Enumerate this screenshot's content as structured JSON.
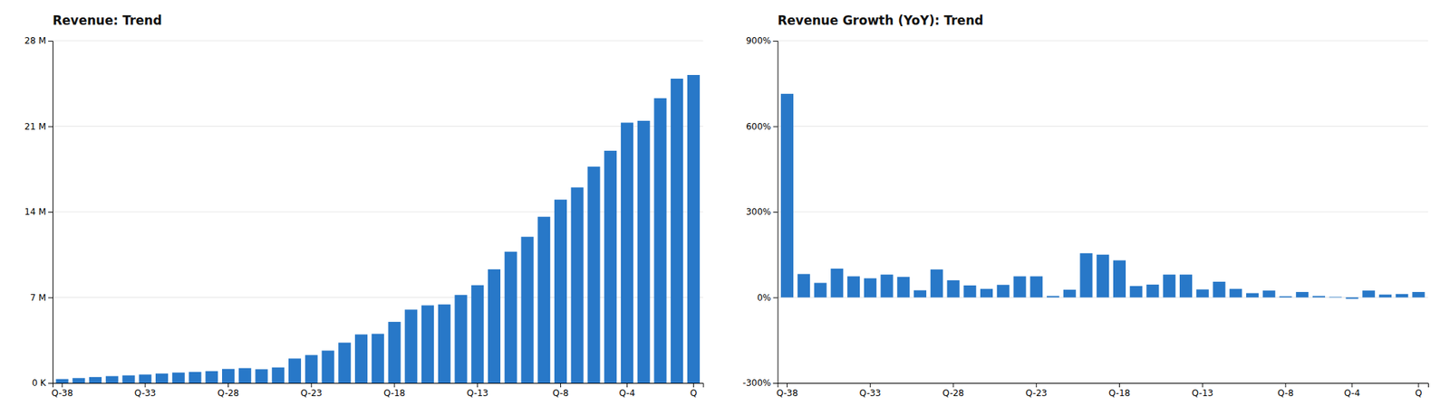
{
  "chart_data": [
    {
      "type": "bar",
      "title": "Revenue: Trend",
      "categories": [
        "Q-38",
        null,
        null,
        null,
        null,
        "Q-33",
        null,
        null,
        null,
        null,
        "Q-28",
        null,
        null,
        null,
        null,
        "Q-23",
        null,
        null,
        null,
        null,
        "Q-18",
        null,
        null,
        null,
        null,
        "Q-13",
        null,
        null,
        null,
        null,
        "Q-8",
        null,
        null,
        null,
        "Q-4",
        null,
        null,
        null,
        "Q"
      ],
      "values": [
        320000,
        400000,
        485000,
        560000,
        620000,
        690000,
        769000,
        852000,
        904000,
        968000,
        1147000,
        1214000,
        1120000,
        1270000,
        2000000,
        2285000,
        2650000,
        3300000,
        3970000,
        4020000,
        5000000,
        6000000,
        6350000,
        6424000,
        7200000,
        8000000,
        9300000,
        10740000,
        11960000,
        13600000,
        15000000,
        16000000,
        17700000,
        19000000,
        21300000,
        21450000,
        23300000,
        24900000,
        25200000
      ],
      "color": "#2878C8",
      "ylim": [
        0,
        28000000
      ],
      "yticks": [
        {
          "value": 0,
          "label": "0 K"
        },
        {
          "value": 7000000,
          "label": "7 M"
        },
        {
          "value": 14000000,
          "label": "14 M"
        },
        {
          "value": 21000000,
          "label": "21 M"
        },
        {
          "value": 28000000,
          "label": "28 M"
        }
      ],
      "grid": true
    },
    {
      "type": "bar",
      "title": "Revenue Growth (YoY): Trend",
      "categories": [
        "Q-38",
        null,
        null,
        null,
        null,
        "Q-33",
        null,
        null,
        null,
        null,
        "Q-28",
        null,
        null,
        null,
        null,
        "Q-23",
        null,
        null,
        null,
        null,
        "Q-18",
        null,
        null,
        null,
        null,
        "Q-13",
        null,
        null,
        null,
        null,
        "Q-8",
        null,
        null,
        null,
        "Q-4",
        null,
        null,
        null,
        "Q"
      ],
      "values": [
        714,
        82,
        51,
        101,
        74,
        67,
        80,
        72,
        25,
        98,
        60,
        42,
        30,
        44,
        74,
        74,
        5,
        27,
        155,
        150,
        130,
        40,
        45,
        80,
        80,
        28,
        55,
        30,
        15,
        24,
        4,
        19,
        5,
        2,
        -5,
        24,
        10,
        12,
        19
      ],
      "color": "#2878C8",
      "ylim": [
        -300,
        900
      ],
      "yticks": [
        {
          "value": -300,
          "label": "-300%"
        },
        {
          "value": 0,
          "label": "0%"
        },
        {
          "value": 300,
          "label": "300%"
        },
        {
          "value": 600,
          "label": "600%"
        },
        {
          "value": 900,
          "label": "900%"
        }
      ],
      "grid": true
    }
  ]
}
